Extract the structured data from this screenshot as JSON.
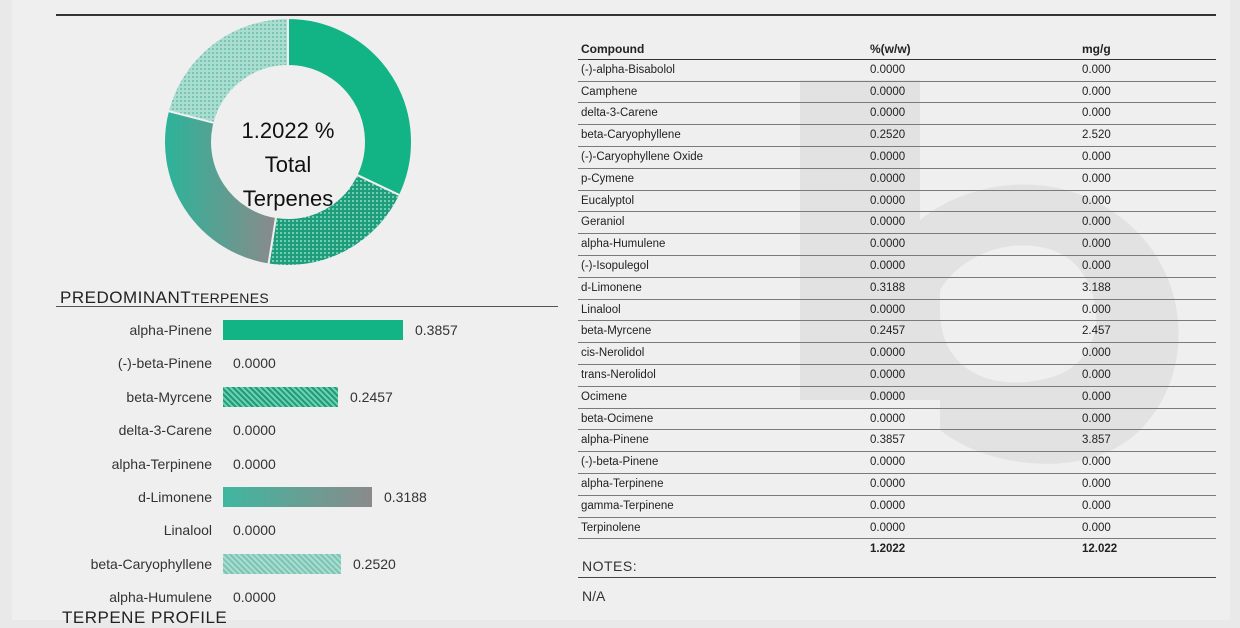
{
  "donut": {
    "line1": "1.2022 %",
    "line2": "Total",
    "line3": "Terpenes"
  },
  "predominant": {
    "title_main": "PREDOMINANT",
    "title_sub": "TERPENES",
    "items": [
      {
        "label": "alpha-Pinene",
        "value": "0.3857",
        "amount": 0.3857,
        "pattern": "solid"
      },
      {
        "label": "(-)-beta-Pinene",
        "value": "0.0000",
        "amount": 0,
        "pattern": "none"
      },
      {
        "label": "beta-Myrcene",
        "value": "0.2457",
        "amount": 0.2457,
        "pattern": "dots"
      },
      {
        "label": "delta-3-Carene",
        "value": "0.0000",
        "amount": 0,
        "pattern": "none"
      },
      {
        "label": "alpha-Terpinene",
        "value": "0.0000",
        "amount": 0,
        "pattern": "none"
      },
      {
        "label": "d-Limonene",
        "value": "0.3188",
        "amount": 0.3188,
        "pattern": "gradient"
      },
      {
        "label": "Linalool",
        "value": "0.0000",
        "amount": 0,
        "pattern": "none"
      },
      {
        "label": "beta-Caryophyllene",
        "value": "0.2520",
        "amount": 0.252,
        "pattern": "light"
      },
      {
        "label": "alpha-Humulene",
        "value": "0.0000",
        "amount": 0,
        "pattern": "none"
      }
    ]
  },
  "footer_title": "TERPENE PROFILE",
  "table": {
    "headers": [
      "Compound",
      "%(w/w)",
      "mg/g"
    ],
    "rows": [
      [
        "(-)-alpha-Bisabolol",
        "0.0000",
        "0.000"
      ],
      [
        "Camphene",
        "0.0000",
        "0.000"
      ],
      [
        "delta-3-Carene",
        "0.0000",
        "0.000"
      ],
      [
        "beta-Caryophyllene",
        "0.2520",
        "2.520"
      ],
      [
        "(-)-Caryophyllene Oxide",
        "0.0000",
        "0.000"
      ],
      [
        "p-Cymene",
        "0.0000",
        "0.000"
      ],
      [
        "Eucalyptol",
        "0.0000",
        "0.000"
      ],
      [
        "Geraniol",
        "0.0000",
        "0.000"
      ],
      [
        "alpha-Humulene",
        "0.0000",
        "0.000"
      ],
      [
        "(-)-Isopulegol",
        "0.0000",
        "0.000"
      ],
      [
        "d-Limonene",
        "0.3188",
        "3.188"
      ],
      [
        "Linalool",
        "0.0000",
        "0.000"
      ],
      [
        "beta-Myrcene",
        "0.2457",
        "2.457"
      ],
      [
        "cis-Nerolidol",
        "0.0000",
        "0.000"
      ],
      [
        "trans-Nerolidol",
        "0.0000",
        "0.000"
      ],
      [
        "Ocimene",
        "0.0000",
        "0.000"
      ],
      [
        "beta-Ocimene",
        "0.0000",
        "0.000"
      ],
      [
        "alpha-Pinene",
        "0.3857",
        "3.857"
      ],
      [
        "(-)-beta-Pinene",
        "0.0000",
        "0.000"
      ],
      [
        "alpha-Terpinene",
        "0.0000",
        "0.000"
      ],
      [
        "gamma-Terpinene",
        "0.0000",
        "0.000"
      ],
      [
        "Terpinolene",
        "0.0000",
        "0.000"
      ]
    ],
    "total": [
      "",
      "1.2022",
      "12.022"
    ]
  },
  "notes": {
    "label": "NOTES:",
    "value": "N/A"
  },
  "colors": {
    "primary": "#12b384",
    "teal_mid": "#3fb7a0",
    "teal_light": "#9fd8cb",
    "grey": "#8a8a8a"
  }
}
